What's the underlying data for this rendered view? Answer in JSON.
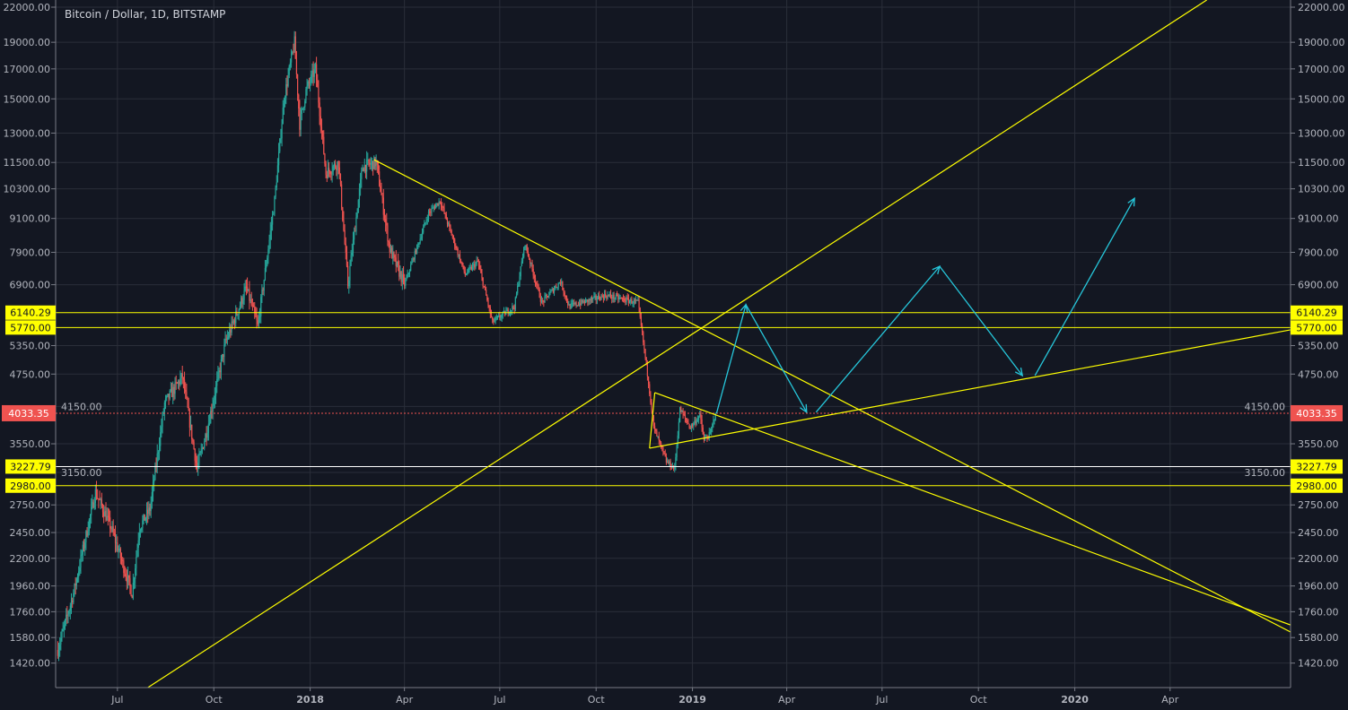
{
  "chart_data": {
    "type": "candlestick",
    "title": "Bitcoin / Dollar, 1D, BITSTAMP",
    "symbol": "Bitcoin / Dollar",
    "interval": "1D",
    "exchange": "BITSTAMP",
    "y_scale": "log",
    "ylim": [
      1300,
      22000
    ],
    "xlim": [
      "2017-05-03",
      "2020-07-25"
    ],
    "grid": true,
    "y_ticks": [
      "22000.00",
      "19000.00",
      "17000.00",
      "15000.00",
      "13000.00",
      "11500.00",
      "10300.00",
      "9100.00",
      "7900.00",
      "6900.00",
      "5350.00",
      "4750.00",
      "4150.00",
      "3550.00",
      "3150.00",
      "2750.00",
      "2450.00",
      "2200.00",
      "1960.00",
      "1760.00",
      "1580.00",
      "1420.00"
    ],
    "x_ticks": [
      {
        "label": "Jul",
        "date": "2017-07-01"
      },
      {
        "label": "Oct",
        "date": "2017-10-01"
      },
      {
        "label": "2018",
        "date": "2018-01-01"
      },
      {
        "label": "Apr",
        "date": "2018-04-01"
      },
      {
        "label": "Jul",
        "date": "2018-07-01"
      },
      {
        "label": "Oct",
        "date": "2018-10-01"
      },
      {
        "label": "2019",
        "date": "2019-01-01"
      },
      {
        "label": "Apr",
        "date": "2019-04-01"
      },
      {
        "label": "Jul",
        "date": "2019-07-01"
      },
      {
        "label": "Oct",
        "date": "2019-10-01"
      },
      {
        "label": "2020",
        "date": "2020-01-01"
      },
      {
        "label": "Apr",
        "date": "2020-04-01"
      }
    ],
    "price_path": [
      [
        "2017-05-05",
        1500
      ],
      [
        "2017-05-20",
        1900
      ],
      [
        "2017-06-10",
        2900
      ],
      [
        "2017-06-25",
        2500
      ],
      [
        "2017-07-15",
        1900
      ],
      [
        "2017-07-22",
        2500
      ],
      [
        "2017-08-01",
        2700
      ],
      [
        "2017-08-15",
        4200
      ],
      [
        "2017-09-01",
        4700
      ],
      [
        "2017-09-15",
        3200
      ],
      [
        "2017-09-25",
        3800
      ],
      [
        "2017-10-12",
        5400
      ],
      [
        "2017-11-01",
        6800
      ],
      [
        "2017-11-12",
        5800
      ],
      [
        "2017-11-28",
        9800
      ],
      [
        "2017-12-07",
        15000
      ],
      [
        "2017-12-17",
        19000
      ],
      [
        "2017-12-22",
        13500
      ],
      [
        "2017-12-28",
        15500
      ],
      [
        "2018-01-06",
        17000
      ],
      [
        "2018-01-16",
        11000
      ],
      [
        "2018-01-28",
        11500
      ],
      [
        "2018-02-06",
        6900
      ],
      [
        "2018-02-20",
        11300
      ],
      [
        "2018-03-05",
        11500
      ],
      [
        "2018-03-18",
        8000
      ],
      [
        "2018-04-01",
        6900
      ],
      [
        "2018-04-24",
        9300
      ],
      [
        "2018-05-05",
        9800
      ],
      [
        "2018-05-29",
        7200
      ],
      [
        "2018-06-10",
        7600
      ],
      [
        "2018-06-24",
        5900
      ],
      [
        "2018-07-15",
        6300
      ],
      [
        "2018-07-25",
        8200
      ],
      [
        "2018-08-10",
        6400
      ],
      [
        "2018-08-28",
        7000
      ],
      [
        "2018-09-05",
        6300
      ],
      [
        "2018-10-10",
        6600
      ],
      [
        "2018-11-10",
        6400
      ],
      [
        "2018-11-20",
        4600
      ],
      [
        "2018-11-25",
        3800
      ],
      [
        "2018-12-07",
        3300
      ],
      [
        "2018-12-15",
        3200
      ],
      [
        "2018-12-20",
        4100
      ],
      [
        "2018-12-30",
        3800
      ],
      [
        "2019-01-08",
        4000
      ],
      [
        "2019-01-12",
        3600
      ],
      [
        "2019-01-18",
        3700
      ],
      [
        "2019-01-23",
        4033.35
      ]
    ],
    "last_price": {
      "value": 4033.35,
      "label": "4033.35",
      "color": "#ef5350"
    },
    "horizontal_levels": [
      {
        "value": 6140.29,
        "label": "6140.29",
        "color": "#ffff00"
      },
      {
        "value": 5770.0,
        "label": "5770.00",
        "color": "#ffff00"
      },
      {
        "value": 3227.79,
        "label": "3227.79",
        "color": "#ffffff"
      },
      {
        "value": 2980.0,
        "label": "2980.00",
        "color": "#ffff00"
      }
    ],
    "trendlines": [
      {
        "from": [
          "2017-07-30",
          1282
        ],
        "to": [
          "2020-05-06",
          22669
        ]
      },
      {
        "from": [
          "2018-03-03",
          11630
        ],
        "to": [
          "2020-07-25",
          1617
        ]
      },
      {
        "from": [
          "2018-11-26",
          4396
        ],
        "to": [
          "2020-07-25",
          1665
        ]
      },
      {
        "from": [
          "2018-11-21",
          3485
        ],
        "to": [
          "2020-07-25",
          5714
        ]
      },
      {
        "from": [
          "2018-11-26",
          4396
        ],
        "to": [
          "2018-11-21",
          3485
        ]
      }
    ],
    "projection_arrows": [
      [
        [
          "2019-01-24",
          4033
        ],
        [
          "2019-02-21",
          6350
        ],
        [
          "2019-04-20",
          4050
        ]
      ],
      [
        [
          "2019-04-29",
          4050
        ],
        [
          "2019-08-25",
          7450
        ],
        [
          "2019-11-12",
          4720
        ]
      ],
      [
        [
          "2019-11-24",
          4720
        ],
        [
          "2020-02-27",
          9900
        ]
      ]
    ]
  },
  "colors": {
    "background": "#131722",
    "grid": "#2a2e39",
    "axis_text": "#b2b5be",
    "up": "#26a69a",
    "down": "#ef5350",
    "trendline": "#ffff00",
    "arrow": "#26c6da"
  }
}
